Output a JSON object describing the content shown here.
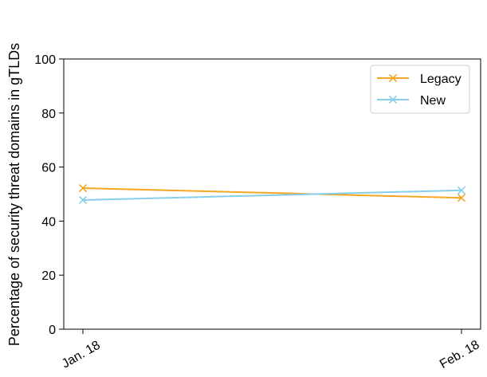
{
  "chart_data": {
    "type": "line",
    "title": "",
    "xlabel": "",
    "ylabel": "Percentage of security threat domains in gTLDs",
    "categories": [
      "Jan. 18",
      "Feb. 18"
    ],
    "ylim": [
      0,
      100
    ],
    "yticks": [
      0,
      20,
      40,
      60,
      80,
      100
    ],
    "grid": false,
    "legend_position": "top-right",
    "series": [
      {
        "name": "Legacy",
        "values": [
          52.2,
          48.6
        ],
        "color": "#f5a623",
        "marker": "x"
      },
      {
        "name": "New",
        "values": [
          47.8,
          51.4
        ],
        "color": "#87ceeb",
        "marker": "x"
      }
    ]
  }
}
